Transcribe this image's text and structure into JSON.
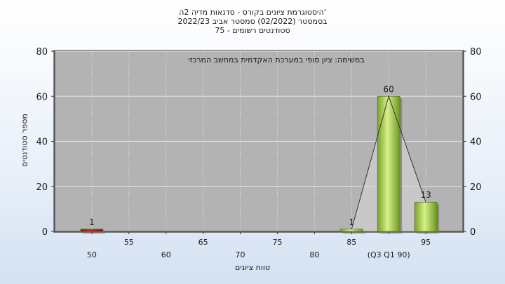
{
  "titles": {
    "line1": "היסטוגרמת ציונים בקורס - סדנאות מדיה 2ה'",
    "line2": "בסמסטר  (02/2022)  סמסטר אביב 2022/23",
    "line3": "סטודנטים רשומים - 75"
  },
  "colors": {
    "plot_bg": "#b3b3b3",
    "grid": "#e6e6e6",
    "bar_green": "#9acd32",
    "bar_red": "#d9241c"
  },
  "chart_data": {
    "type": "bar",
    "title": "",
    "annotation": "במשימה: ציון סופי במערכת האקדמית במחשב המרכזי",
    "xlabel": "טווח ציונים",
    "ylabel": "מספר סטודנטים",
    "ylim": [
      0,
      80
    ],
    "yticks": [
      0,
      20,
      40,
      60,
      80
    ],
    "y_axis_both_sides": true,
    "grid": true,
    "xlim": [
      45,
      100
    ],
    "x_ticks_upper": [
      "55",
      "65",
      "75",
      "85",
      "95"
    ],
    "x_ticks_lower": [
      "50",
      "60",
      "70",
      "80",
      "(Q3 Q1 90)"
    ],
    "bars": [
      {
        "x": 50,
        "value": 1,
        "label": "1",
        "color": "red"
      },
      {
        "x": 85,
        "value": 1,
        "label": "1",
        "color": "green"
      },
      {
        "x": 90,
        "value": 60,
        "label": "60",
        "color": "green"
      },
      {
        "x": 95,
        "value": 13,
        "label": "13",
        "color": "green"
      }
    ],
    "trend_line": [
      [
        85,
        1
      ],
      [
        90,
        60
      ],
      [
        95,
        13
      ]
    ]
  }
}
